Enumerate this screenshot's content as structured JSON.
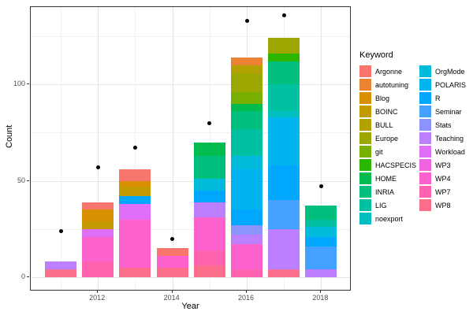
{
  "chart_data": {
    "type": "bar",
    "subtype": "stacked-bars-with-points",
    "title": "",
    "xlabel": "Year",
    "ylabel": "Count",
    "legend_title": "Keyword",
    "legend_position": "right",
    "grid": true,
    "x_major_ticks": [
      2012,
      2014,
      2016,
      2018
    ],
    "x_minor_years": [
      2011,
      2013,
      2015,
      2017
    ],
    "y_major_ticks": [
      0,
      50,
      100
    ],
    "y_minor_ticks": [
      25,
      75,
      125
    ],
    "ylim": [
      0,
      140
    ],
    "years": [
      2011,
      2012,
      2013,
      2014,
      2015,
      2016,
      2017,
      2018
    ],
    "keywords": [
      {
        "name": "Argonne",
        "color": "#F8766D"
      },
      {
        "name": "autotuning",
        "color": "#EB8335"
      },
      {
        "name": "Blog",
        "color": "#D89000"
      },
      {
        "name": "BOINC",
        "color": "#C39B00"
      },
      {
        "name": "BULL",
        "color": "#B2A100"
      },
      {
        "name": "Europe",
        "color": "#9CA700"
      },
      {
        "name": "git",
        "color": "#78B000"
      },
      {
        "name": "HACSPECIS",
        "color": "#2BB600"
      },
      {
        "name": "HOME",
        "color": "#00BB4E"
      },
      {
        "name": "INRIA",
        "color": "#00BF7D"
      },
      {
        "name": "LIG",
        "color": "#00C0A2"
      },
      {
        "name": "noexport",
        "color": "#00BFC1"
      },
      {
        "name": "OrgMode",
        "color": "#00BBDB"
      },
      {
        "name": "POLARIS",
        "color": "#00B4EF"
      },
      {
        "name": "R",
        "color": "#00A7FF"
      },
      {
        "name": "Seminar",
        "color": "#45A1FF"
      },
      {
        "name": "Stats",
        "color": "#8B93FF"
      },
      {
        "name": "Teaching",
        "color": "#BC80FF"
      },
      {
        "name": "Workload",
        "color": "#E06EF7"
      },
      {
        "name": "WP3",
        "color": "#F263E0"
      },
      {
        "name": "WP4",
        "color": "#FC61CE"
      },
      {
        "name": "WP7",
        "color": "#FF63AF"
      },
      {
        "name": "WP8",
        "color": "#FB6E8C"
      }
    ],
    "stacks": [
      {
        "year": 2011,
        "total": 8,
        "segments_top_to_bottom": [
          {
            "keyword": "Teaching",
            "value": 4
          },
          {
            "keyword": "WP8",
            "value": 4
          }
        ]
      },
      {
        "year": 2012,
        "total": 39,
        "segments_top_to_bottom": [
          {
            "keyword": "Argonne",
            "value": 4
          },
          {
            "keyword": "Blog",
            "value": 6
          },
          {
            "keyword": "BOINC",
            "value": 4
          },
          {
            "keyword": "Workload",
            "value": 4
          },
          {
            "keyword": "WP4",
            "value": 13
          },
          {
            "keyword": "WP7",
            "value": 8
          }
        ]
      },
      {
        "year": 2013,
        "total": 56,
        "segments_top_to_bottom": [
          {
            "keyword": "Argonne",
            "value": 6
          },
          {
            "keyword": "Blog",
            "value": 3
          },
          {
            "keyword": "BOINC",
            "value": 5
          },
          {
            "keyword": "R",
            "value": 4
          },
          {
            "keyword": "Workload",
            "value": 8
          },
          {
            "keyword": "WP4",
            "value": 25
          },
          {
            "keyword": "WP8",
            "value": 5
          }
        ]
      },
      {
        "year": 2014,
        "total": 15,
        "segments_top_to_bottom": [
          {
            "keyword": "Argonne",
            "value": 4
          },
          {
            "keyword": "WP4",
            "value": 6
          },
          {
            "keyword": "WP8",
            "value": 5
          }
        ]
      },
      {
        "year": 2015,
        "total": 70,
        "segments_top_to_bottom": [
          {
            "keyword": "HOME",
            "value": 7
          },
          {
            "keyword": "INRIA",
            "value": 12
          },
          {
            "keyword": "OrgMode",
            "value": 6
          },
          {
            "keyword": "R",
            "value": 6
          },
          {
            "keyword": "Teaching",
            "value": 8
          },
          {
            "keyword": "WP4",
            "value": 17
          },
          {
            "keyword": "WP7",
            "value": 8
          },
          {
            "keyword": "WP8",
            "value": 6
          }
        ]
      },
      {
        "year": 2016,
        "total": 114,
        "segments_top_to_bottom": [
          {
            "keyword": "autotuning",
            "value": 4
          },
          {
            "keyword": "BULL",
            "value": 4
          },
          {
            "keyword": "Europe",
            "value": 10
          },
          {
            "keyword": "git",
            "value": 6
          },
          {
            "keyword": "HOME",
            "value": 4
          },
          {
            "keyword": "INRIA",
            "value": 9
          },
          {
            "keyword": "LIG",
            "value": 14
          },
          {
            "keyword": "OrgMode",
            "value": 7
          },
          {
            "keyword": "POLARIS",
            "value": 21
          },
          {
            "keyword": "R",
            "value": 8
          },
          {
            "keyword": "Stats",
            "value": 5
          },
          {
            "keyword": "Teaching",
            "value": 5
          },
          {
            "keyword": "WP4",
            "value": 13
          },
          {
            "keyword": "WP7",
            "value": 4
          }
        ]
      },
      {
        "year": 2017,
        "total": 124,
        "segments_top_to_bottom": [
          {
            "keyword": "Europe",
            "value": 8
          },
          {
            "keyword": "HACSPECIS",
            "value": 4
          },
          {
            "keyword": "INRIA",
            "value": 12
          },
          {
            "keyword": "LIG",
            "value": 14
          },
          {
            "keyword": "noexport",
            "value": 3
          },
          {
            "keyword": "POLARIS",
            "value": 25
          },
          {
            "keyword": "R",
            "value": 18
          },
          {
            "keyword": "Seminar",
            "value": 15
          },
          {
            "keyword": "Teaching",
            "value": 21
          },
          {
            "keyword": "WP8",
            "value": 4
          }
        ]
      },
      {
        "year": 2018,
        "total": 37,
        "segments_top_to_bottom": [
          {
            "keyword": "INRIA",
            "value": 7
          },
          {
            "keyword": "LIG",
            "value": 4
          },
          {
            "keyword": "OrgMode",
            "value": 5
          },
          {
            "keyword": "R",
            "value": 5
          },
          {
            "keyword": "Seminar",
            "value": 12
          },
          {
            "keyword": "Teaching",
            "value": 4
          }
        ]
      }
    ],
    "points": {
      "marker": "black-dot",
      "values_by_year": [
        24,
        57,
        67,
        20,
        80,
        133,
        136,
        47
      ]
    }
  }
}
